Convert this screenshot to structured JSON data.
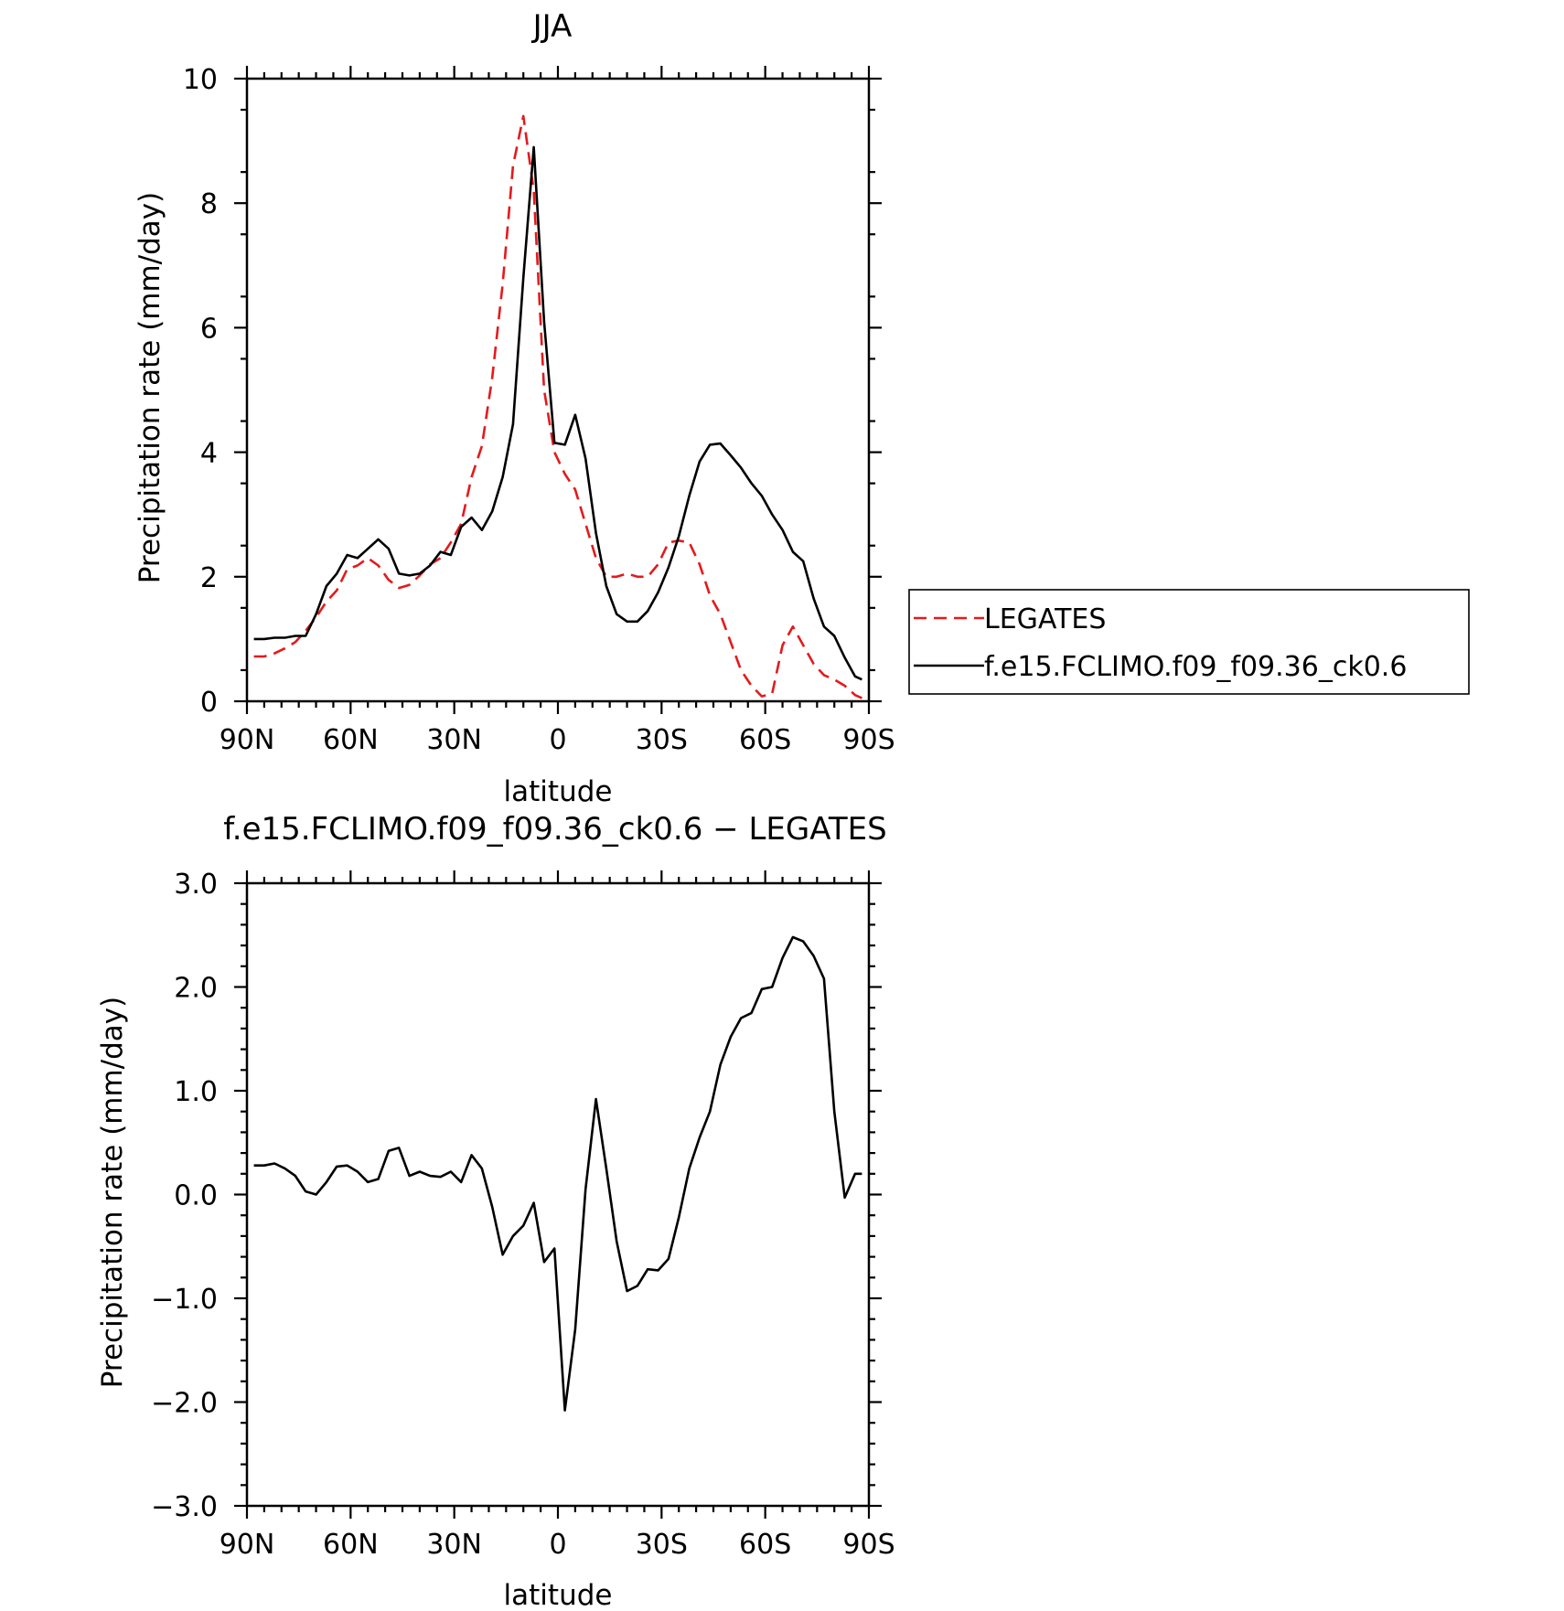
{
  "chart_data": [
    {
      "type": "line",
      "title": "JJA",
      "xlabel": "latitude",
      "ylabel": "Precipitation rate (mm/day)",
      "xlim": [
        90,
        -90
      ],
      "ylim": [
        0,
        10
      ],
      "xticks": [
        {
          "value": 90,
          "label": "90N"
        },
        {
          "value": 60,
          "label": "60N"
        },
        {
          "value": 30,
          "label": "30N"
        },
        {
          "value": 0,
          "label": "0"
        },
        {
          "value": -30,
          "label": "30S"
        },
        {
          "value": -60,
          "label": "60S"
        },
        {
          "value": -90,
          "label": "90S"
        }
      ],
      "yticks": [
        {
          "value": 0,
          "label": "0"
        },
        {
          "value": 2,
          "label": "2"
        },
        {
          "value": 4,
          "label": "4"
        },
        {
          "value": 6,
          "label": "6"
        },
        {
          "value": 8,
          "label": "8"
        },
        {
          "value": 10,
          "label": "10"
        }
      ],
      "legend": "right",
      "series": [
        {
          "name": "LEGATES",
          "color": "#e41a1c",
          "dash": true,
          "x": [
            88,
            85,
            82,
            79,
            76,
            73,
            70,
            67,
            64,
            61,
            58,
            55,
            52,
            49,
            46,
            43,
            40,
            37,
            34,
            31,
            28,
            25,
            22,
            19,
            16,
            13,
            10,
            7,
            4,
            1,
            -2,
            -5,
            -8,
            -11,
            -14,
            -17,
            -20,
            -23,
            -26,
            -29,
            -32,
            -35,
            -38,
            -41,
            -44,
            -47,
            -50,
            -53,
            -56,
            -59,
            -62,
            -65,
            -68,
            -71,
            -74,
            -77,
            -80,
            -83,
            -86,
            -88
          ],
          "y": [
            0.72,
            0.72,
            0.77,
            0.85,
            0.95,
            1.13,
            1.35,
            1.6,
            1.78,
            2.12,
            2.18,
            2.3,
            2.18,
            1.95,
            1.82,
            1.87,
            2.02,
            2.2,
            2.3,
            2.55,
            2.85,
            3.6,
            4.1,
            5.2,
            6.7,
            8.6,
            9.4,
            8.2,
            5.0,
            4.0,
            3.65,
            3.4,
            2.85,
            2.3,
            2.0,
            2.0,
            2.05,
            2.0,
            2.0,
            2.2,
            2.55,
            2.58,
            2.55,
            2.2,
            1.7,
            1.4,
            0.95,
            0.5,
            0.25,
            0.08,
            0.12,
            0.9,
            1.2,
            0.9,
            0.6,
            0.42,
            0.35,
            0.25,
            0.1,
            0.05
          ]
        },
        {
          "name": "f.e15.FCLIMO.f09_f09.36_ck0.6",
          "color": "#000000",
          "dash": false,
          "x": [
            88,
            85,
            82,
            79,
            76,
            73,
            70,
            67,
            64,
            61,
            58,
            55,
            52,
            49,
            46,
            43,
            40,
            37,
            34,
            31,
            28,
            25,
            22,
            19,
            16,
            13,
            10,
            7,
            4,
            1,
            -2,
            -5,
            -8,
            -11,
            -14,
            -17,
            -20,
            -23,
            -26,
            -29,
            -32,
            -35,
            -38,
            -41,
            -44,
            -47,
            -50,
            -53,
            -56,
            -59,
            -62,
            -65,
            -68,
            -71,
            -74,
            -77,
            -80,
            -83,
            -86,
            -88
          ],
          "y": [
            1.0,
            1.0,
            1.02,
            1.02,
            1.05,
            1.05,
            1.4,
            1.85,
            2.05,
            2.35,
            2.3,
            2.45,
            2.6,
            2.45,
            2.05,
            2.02,
            2.05,
            2.18,
            2.4,
            2.35,
            2.8,
            2.95,
            2.75,
            3.05,
            3.6,
            4.45,
            6.8,
            8.9,
            6.1,
            4.15,
            4.12,
            4.6,
            3.9,
            2.7,
            1.85,
            1.4,
            1.28,
            1.28,
            1.45,
            1.75,
            2.15,
            2.65,
            3.3,
            3.85,
            4.12,
            4.14,
            3.95,
            3.75,
            3.5,
            3.3,
            3.0,
            2.75,
            2.4,
            2.25,
            1.65,
            1.2,
            1.05,
            0.7,
            0.4,
            0.35
          ]
        }
      ]
    },
    {
      "type": "line",
      "title": "f.e15.FCLIMO.f09_f09.36_ck0.6 − LEGATES",
      "xlabel": "latitude",
      "ylabel": "Precipitation rate (mm/day)",
      "xlim": [
        90,
        -90
      ],
      "ylim": [
        -3,
        3
      ],
      "xticks": [
        {
          "value": 90,
          "label": "90N"
        },
        {
          "value": 60,
          "label": "60N"
        },
        {
          "value": 30,
          "label": "30N"
        },
        {
          "value": 0,
          "label": "0"
        },
        {
          "value": -30,
          "label": "30S"
        },
        {
          "value": -60,
          "label": "60S"
        },
        {
          "value": -90,
          "label": "90S"
        }
      ],
      "yticks": [
        {
          "value": -3,
          "label": "−3.0"
        },
        {
          "value": -2,
          "label": "−2.0"
        },
        {
          "value": -1,
          "label": "−1.0"
        },
        {
          "value": 0,
          "label": "0.0"
        },
        {
          "value": 1,
          "label": "1.0"
        },
        {
          "value": 2,
          "label": "2.0"
        },
        {
          "value": 3,
          "label": "3.0"
        }
      ],
      "series": [
        {
          "color": "#000000",
          "dash": false,
          "x": [
            88,
            85,
            82,
            79,
            76,
            73,
            70,
            67,
            64,
            61,
            58,
            55,
            52,
            49,
            46,
            43,
            40,
            37,
            34,
            31,
            28,
            25,
            22,
            19,
            16,
            13,
            10,
            7,
            4,
            1,
            -2,
            -5,
            -8,
            -11,
            -14,
            -17,
            -20,
            -23,
            -26,
            -29,
            -32,
            -35,
            -38,
            -41,
            -44,
            -47,
            -50,
            -53,
            -56,
            -59,
            -62,
            -65,
            -68,
            -71,
            -74,
            -77,
            -80,
            -83,
            -86,
            -88
          ],
          "y": [
            0.28,
            0.28,
            0.3,
            0.25,
            0.18,
            0.03,
            0.0,
            0.12,
            0.27,
            0.28,
            0.22,
            0.12,
            0.15,
            0.42,
            0.45,
            0.18,
            0.22,
            0.18,
            0.17,
            0.22,
            0.12,
            0.38,
            0.25,
            -0.12,
            -0.58,
            -0.4,
            -0.3,
            -0.08,
            -0.65,
            -0.52,
            -2.08,
            -1.3,
            0.05,
            0.92,
            0.25,
            -0.45,
            -0.93,
            -0.88,
            -0.72,
            -0.73,
            -0.62,
            -0.22,
            0.25,
            0.55,
            0.8,
            1.25,
            1.52,
            1.7,
            1.75,
            1.98,
            2.0,
            2.28,
            2.48,
            2.44,
            2.3,
            2.08,
            0.8,
            -0.03,
            0.2,
            0.2
          ]
        }
      ]
    }
  ]
}
